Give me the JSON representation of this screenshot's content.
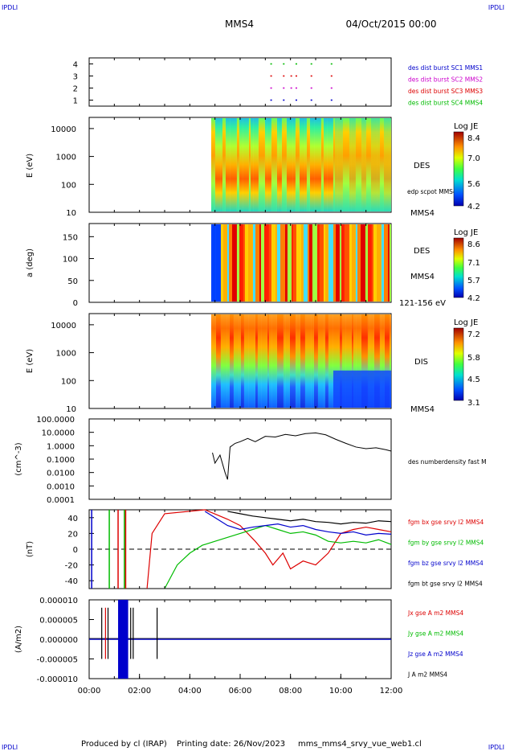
{
  "header": {
    "corner_left_top": "IPDLI",
    "corner_right_top": "IPDLI",
    "corner_left_bottom": "IPDLI",
    "corner_right_bottom": "IPDLI",
    "title": "MMS4",
    "date": "04/Oct/2015 00:00"
  },
  "footer": {
    "produced_by": "Produced by cl (IRAP)",
    "printing_date": "Printing date: 26/Nov/2023",
    "filename": "mms_mms4_srvy_vue_web1.cl"
  },
  "colors": {
    "blue": "#0000cc",
    "magenta": "#cc00cc",
    "red": "#dd0000",
    "green": "#00bb00",
    "black": "#000000"
  },
  "chart_data": [
    {
      "type": "scatter",
      "panel": "burst",
      "yticks": [
        "1",
        "2",
        "3",
        "4"
      ],
      "ylim": [
        0.5,
        4.5
      ],
      "series": [
        {
          "name": "des dist burst SC1 MMS1",
          "color": "#0000cc",
          "y": 1,
          "x": [
            7.2,
            7.7,
            8.2,
            8.8,
            9.6
          ]
        },
        {
          "name": "des dist burst SC2 MMS2",
          "color": "#cc00cc",
          "y": 2,
          "x": [
            7.2,
            7.7,
            8.0,
            8.2,
            8.8,
            9.6
          ]
        },
        {
          "name": "des dist burst SC3 MMS3",
          "color": "#dd0000",
          "y": 3,
          "x": [
            7.2,
            7.7,
            8.0,
            8.2,
            8.8,
            9.6
          ]
        },
        {
          "name": "des dist burst SC4 MMS4",
          "color": "#00bb00",
          "y": 4,
          "x": [
            7.2,
            7.7,
            8.2,
            8.8,
            9.6
          ]
        }
      ]
    },
    {
      "type": "heatmap",
      "panel": "des_energy",
      "ylabel": "E (eV)",
      "yticks": [
        "10",
        "100",
        "1000",
        "10000"
      ],
      "log_y": true,
      "label": "DES",
      "extra_label": "edp scpot MMS4",
      "bottom_label": "MMS4",
      "colorbar": {
        "title": "Log JE",
        "ticks": [
          "8.4",
          "7.0",
          "5.6",
          "4.2"
        ]
      }
    },
    {
      "type": "heatmap",
      "panel": "des_pitch",
      "ylabel": "a (deg)",
      "yticks": [
        "0",
        "50",
        "100",
        "150"
      ],
      "label": "DES",
      "sub_label": "MMS4",
      "bottom_label": "121-156 eV",
      "colorbar": {
        "title": "Log JE",
        "ticks": [
          "8.6",
          "7.1",
          "5.7",
          "4.2"
        ]
      }
    },
    {
      "type": "heatmap",
      "panel": "dis_energy",
      "ylabel": "E (eV)",
      "yticks": [
        "10",
        "100",
        "1000",
        "10000"
      ],
      "log_y": true,
      "label": "DIS",
      "bottom_label": "MMS4",
      "colorbar": {
        "title": "Log JE",
        "ticks": [
          "7.2",
          "5.8",
          "4.5",
          "3.1"
        ]
      }
    },
    {
      "type": "line",
      "panel": "density",
      "ylabel": "(cm^-3)",
      "yticks": [
        "100.0000",
        "10.0000",
        "1.0000",
        "0.1000",
        "0.0100",
        "0.0010",
        "0.0001"
      ],
      "log_y": true,
      "ylim": [
        0.0001,
        100
      ],
      "series": [
        {
          "name": "des numberdensity fast M",
          "color": "#000000",
          "x": [
            4.9,
            5.0,
            5.2,
            5.4,
            5.5,
            5.6,
            5.8,
            6.0,
            6.3,
            6.6,
            7.0,
            7.4,
            7.8,
            8.2,
            8.6,
            9.0,
            9.4,
            9.8,
            10.2,
            10.6,
            11.0,
            11.4,
            11.8,
            12.0
          ],
          "y": [
            0.3,
            0.05,
            0.2,
            0.01,
            0.003,
            0.8,
            1.5,
            2.0,
            3.5,
            2.0,
            5.0,
            4.5,
            7.0,
            5.5,
            8.0,
            9.0,
            6.5,
            3.0,
            1.5,
            0.8,
            0.6,
            0.7,
            0.5,
            0.4
          ]
        }
      ]
    },
    {
      "type": "line",
      "panel": "magnetic",
      "ylabel": "(nT)",
      "yticks": [
        "40",
        "20",
        "0",
        "-20",
        "-40"
      ],
      "ylim": [
        -50,
        50
      ],
      "series": [
        {
          "name": "fgm bx gse srvy l2 MMS4",
          "color": "#dd0000",
          "x": [
            2.3,
            2.5,
            3.0,
            4.6,
            5.5,
            6.0,
            6.6,
            7.0,
            7.3,
            7.7,
            8.0,
            8.5,
            9.0,
            9.5,
            10.0,
            10.5,
            11.0,
            11.5,
            12.0
          ],
          "y": [
            -50,
            20,
            45,
            50,
            38,
            30,
            10,
            -5,
            -20,
            -5,
            -25,
            -15,
            -20,
            -5,
            20,
            25,
            28,
            25,
            22
          ]
        },
        {
          "name": "fgm by gse srvy l2 MMS4",
          "color": "#00bb00",
          "x": [
            3.0,
            3.5,
            4.0,
            4.5,
            5.0,
            5.5,
            6.0,
            6.5,
            7.0,
            7.5,
            8.0,
            8.5,
            9.0,
            9.5,
            10.0,
            10.5,
            11.0,
            11.5,
            12.0
          ],
          "y": [
            -50,
            -20,
            -5,
            5,
            10,
            15,
            20,
            25,
            30,
            25,
            20,
            22,
            18,
            10,
            8,
            10,
            8,
            12,
            6
          ]
        },
        {
          "name": "fgm bz gse srvy l2 MMS4",
          "color": "#0000cc",
          "x": [
            4.6,
            5.0,
            5.5,
            6.0,
            6.5,
            7.0,
            7.5,
            8.0,
            8.5,
            9.0,
            9.5,
            10.0,
            10.5,
            11.0,
            11.5,
            12.0
          ],
          "y": [
            48,
            40,
            30,
            25,
            28,
            30,
            32,
            28,
            30,
            25,
            22,
            20,
            22,
            18,
            20,
            19
          ]
        },
        {
          "name": "fgm bt gse srvy l2 MMS4",
          "color": "#000000",
          "x": [
            5.5,
            6.0,
            6.5,
            7.0,
            7.5,
            8.0,
            8.5,
            9.0,
            9.5,
            10.0,
            10.5,
            11.0,
            11.5,
            12.0
          ],
          "y": [
            48,
            45,
            42,
            40,
            38,
            36,
            38,
            35,
            34,
            32,
            34,
            33,
            36,
            35
          ]
        }
      ]
    },
    {
      "type": "line",
      "panel": "current",
      "ylabel": "(A/m2)",
      "yticks": [
        "0.000010",
        "0.000005",
        "0.000000",
        "-0.000005",
        "-0.000010"
      ],
      "ylim": [
        -1e-05,
        1e-05
      ],
      "series": [
        {
          "name": "Jx gse A m2 MMS4",
          "color": "#dd0000"
        },
        {
          "name": "Jy gse A m2 MMS4",
          "color": "#00bb00"
        },
        {
          "name": "Jz gse A m2 MMS4",
          "color": "#0000cc"
        },
        {
          "name": "J A m2 MMS4",
          "color": "#000000"
        }
      ]
    }
  ],
  "time_axis": {
    "ticks": [
      "00:00",
      "02:00",
      "04:00",
      "06:00",
      "08:00",
      "10:00",
      "12:00"
    ],
    "range_hours": [
      0,
      12
    ]
  }
}
